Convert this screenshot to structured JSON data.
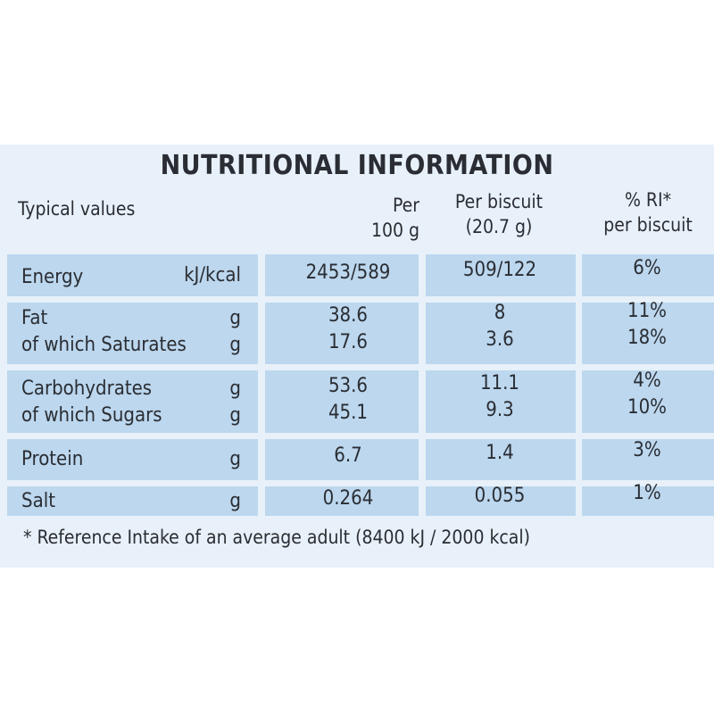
{
  "title": "NUTRITIONAL INFORMATION",
  "headers": {
    "typical": "Typical values",
    "per100_line1": "Per",
    "per100_line2": "100 g",
    "biscuit_line1": "Per biscuit",
    "biscuit_line2": "(20.7 g)",
    "ri_line1": "% RI*",
    "ri_line2": "per biscuit"
  },
  "rows": [
    {
      "name": "Energy",
      "unit": "kJ/kcal",
      "per100": "2453/589",
      "per_biscuit": "509/122",
      "ri": "6%"
    },
    {
      "name": "Fat",
      "unit": "g",
      "per100": "38.6",
      "per_biscuit": "8",
      "ri": "11%"
    },
    {
      "name": "of which Saturates",
      "unit": "g",
      "per100": "17.6",
      "per_biscuit": "3.6",
      "ri": "18%"
    },
    {
      "name": "Carbohydrates",
      "unit": "g",
      "per100": "53.6",
      "per_biscuit": "11.1",
      "ri": "4%"
    },
    {
      "name": "of which Sugars",
      "unit": "g",
      "per100": "45.1",
      "per_biscuit": "9.3",
      "ri": "10%"
    },
    {
      "name": "Protein",
      "unit": "g",
      "per100": "6.7",
      "per_biscuit": "1.4",
      "ri": "3%"
    },
    {
      "name": "Salt",
      "unit": "g",
      "per100": "0.264",
      "per_biscuit": "0.055",
      "ri": "1%"
    }
  ],
  "footnote": "* Reference Intake of an average adult (8400 kJ / 2000 kcal)",
  "colors": {
    "panel": "#e8f1f9",
    "cell": "#bcd7ee",
    "text": "#2a2d33"
  }
}
